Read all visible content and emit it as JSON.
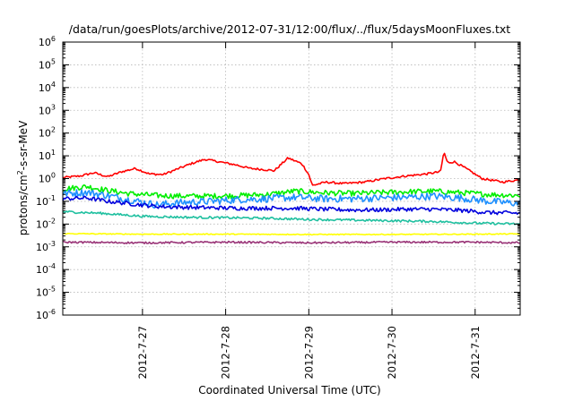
{
  "chart_data": {
    "type": "line",
    "title": "/data/run/goesPlots/archive/2012-07-31/12:00/flux/../flux/5daysMoonFluxes.txt",
    "xlabel": "Coordinated Universal Time (UTC)",
    "ylabel": {
      "base": "protons/cm",
      "sup": "2",
      "rest": "-s-sr-MeV"
    },
    "y_scale": "log",
    "ylim": [
      1e-06,
      1000000.0
    ],
    "xlim": [
      "2012-07-26T01:00",
      "2012-07-31T13:00"
    ],
    "grid": true,
    "legend": "none",
    "y_ticks": [
      {
        "value": 1e-06,
        "base": "10",
        "exp": "-6"
      },
      {
        "value": 1e-05,
        "base": "10",
        "exp": "-5"
      },
      {
        "value": 0.0001,
        "base": "10",
        "exp": "-4"
      },
      {
        "value": 0.001,
        "base": "10",
        "exp": "-3"
      },
      {
        "value": 0.01,
        "base": "10",
        "exp": "-2"
      },
      {
        "value": 0.1,
        "base": "10",
        "exp": "-1"
      },
      {
        "value": 1,
        "base": "10",
        "exp": "0"
      },
      {
        "value": 10.0,
        "base": "10",
        "exp": "1"
      },
      {
        "value": 100.0,
        "base": "10",
        "exp": "2"
      },
      {
        "value": 1000.0,
        "base": "10",
        "exp": "3"
      },
      {
        "value": 10000.0,
        "base": "10",
        "exp": "4"
      },
      {
        "value": 100000.0,
        "base": "10",
        "exp": "5"
      },
      {
        "value": 1000000.0,
        "base": "10",
        "exp": "6"
      }
    ],
    "x_ticks": [
      {
        "value": "2012-07-27T00:00",
        "label": "2012-7-27"
      },
      {
        "value": "2012-07-28T00:00",
        "label": "2012-7-28"
      },
      {
        "value": "2012-07-29T00:00",
        "label": "2012-7-29"
      },
      {
        "value": "2012-07-30T00:00",
        "label": "2012-7-30"
      },
      {
        "value": "2012-07-31T00:00",
        "label": "2012-7-31"
      }
    ],
    "series": [
      {
        "color": "#ff0000",
        "x": [
          "2012-07-26T01:00",
          "2012-07-26T06:00",
          "2012-07-26T10:00",
          "2012-07-26T14:00",
          "2012-07-26T18:00",
          "2012-07-26T22:00",
          "2012-07-27T02:00",
          "2012-07-27T06:00",
          "2012-07-27T10:00",
          "2012-07-27T14:00",
          "2012-07-27T18:00",
          "2012-07-27T22:00",
          "2012-07-28T03:00",
          "2012-07-28T07:00",
          "2012-07-28T11:00",
          "2012-07-28T14:00",
          "2012-07-28T18:00",
          "2012-07-28T22:00",
          "2012-07-29T00:00",
          "2012-07-29T01:00",
          "2012-07-29T05:00",
          "2012-07-29T10:00",
          "2012-07-29T16:00",
          "2012-07-29T22:00",
          "2012-07-30T04:00",
          "2012-07-30T10:00",
          "2012-07-30T14:00",
          "2012-07-30T15:00",
          "2012-07-30T16:00",
          "2012-07-30T18:00",
          "2012-07-30T21:00",
          "2012-07-31T02:00",
          "2012-07-31T08:00",
          "2012-07-31T13:00"
        ],
        "y": [
          1.1,
          1.3,
          1.8,
          1.2,
          2.0,
          2.8,
          1.6,
          1.5,
          2.6,
          4.5,
          7.0,
          5.5,
          4.0,
          2.8,
          2.5,
          2.2,
          8.0,
          4.5,
          1.5,
          0.5,
          0.7,
          0.6,
          0.7,
          1.0,
          1.3,
          1.6,
          2.0,
          15.0,
          5.0,
          5.5,
          3.0,
          1.0,
          0.7,
          0.9
        ]
      },
      {
        "color": "#00ee00",
        "x": [
          "2012-07-26T01:00",
          "2012-07-26T08:00",
          "2012-07-26T14:00",
          "2012-07-26T20:00",
          "2012-07-27T04:00",
          "2012-07-27T12:00",
          "2012-07-27T20:00",
          "2012-07-28T04:00",
          "2012-07-28T12:00",
          "2012-07-28T20:00",
          "2012-07-29T04:00",
          "2012-07-29T12:00",
          "2012-07-29T20:00",
          "2012-07-30T04:00",
          "2012-07-30T12:00",
          "2012-07-30T20:00",
          "2012-07-31T04:00",
          "2012-07-31T13:00"
        ],
        "y": [
          0.35,
          0.45,
          0.3,
          0.22,
          0.18,
          0.17,
          0.17,
          0.18,
          0.2,
          0.28,
          0.24,
          0.22,
          0.24,
          0.26,
          0.28,
          0.24,
          0.2,
          0.18
        ]
      },
      {
        "color": "#1e90ff",
        "x": [
          "2012-07-26T01:00",
          "2012-07-26T08:00",
          "2012-07-26T14:00",
          "2012-07-26T20:00",
          "2012-07-27T04:00",
          "2012-07-27T12:00",
          "2012-07-27T20:00",
          "2012-07-28T04:00",
          "2012-07-28T12:00",
          "2012-07-28T20:00",
          "2012-07-29T04:00",
          "2012-07-29T12:00",
          "2012-07-29T20:00",
          "2012-07-30T04:00",
          "2012-07-30T12:00",
          "2012-07-30T20:00",
          "2012-07-31T04:00",
          "2012-07-31T13:00"
        ],
        "y": [
          0.22,
          0.25,
          0.18,
          0.12,
          0.07,
          0.09,
          0.1,
          0.12,
          0.13,
          0.15,
          0.13,
          0.13,
          0.14,
          0.15,
          0.17,
          0.14,
          0.1,
          0.08
        ]
      },
      {
        "color": "#0000dd",
        "x": [
          "2012-07-26T01:00",
          "2012-07-26T08:00",
          "2012-07-26T14:00",
          "2012-07-26T20:00",
          "2012-07-27T04:00",
          "2012-07-27T12:00",
          "2012-07-27T20:00",
          "2012-07-28T04:00",
          "2012-07-28T12:00",
          "2012-07-28T20:00",
          "2012-07-29T04:00",
          "2012-07-29T12:00",
          "2012-07-29T20:00",
          "2012-07-30T04:00",
          "2012-07-30T12:00",
          "2012-07-30T20:00",
          "2012-07-31T04:00",
          "2012-07-31T13:00"
        ],
        "y": [
          0.13,
          0.14,
          0.1,
          0.08,
          0.06,
          0.055,
          0.052,
          0.05,
          0.05,
          0.05,
          0.045,
          0.042,
          0.042,
          0.045,
          0.045,
          0.04,
          0.032,
          0.03
        ]
      },
      {
        "color": "#20c0a0",
        "x": [
          "2012-07-26T01:00",
          "2012-07-26T12:00",
          "2012-07-27T00:00",
          "2012-07-27T12:00",
          "2012-07-28T00:00",
          "2012-07-28T12:00",
          "2012-07-29T00:00",
          "2012-07-29T12:00",
          "2012-07-30T00:00",
          "2012-07-30T12:00",
          "2012-07-31T00:00",
          "2012-07-31T13:00"
        ],
        "y": [
          0.035,
          0.03,
          0.022,
          0.02,
          0.019,
          0.018,
          0.016,
          0.015,
          0.014,
          0.013,
          0.011,
          0.01
        ]
      },
      {
        "color": "#ffff00",
        "x": [
          "2012-07-26T01:00",
          "2012-07-27T00:00",
          "2012-07-28T00:00",
          "2012-07-29T00:00",
          "2012-07-30T00:00",
          "2012-07-31T00:00",
          "2012-07-31T13:00"
        ],
        "y": [
          0.0038,
          0.0036,
          0.0036,
          0.0035,
          0.0035,
          0.0036,
          0.0037
        ]
      },
      {
        "color": "#993377",
        "x": [
          "2012-07-26T01:00",
          "2012-07-27T00:00",
          "2012-07-28T00:00",
          "2012-07-29T00:00",
          "2012-07-30T00:00",
          "2012-07-31T00:00",
          "2012-07-31T13:00"
        ],
        "y": [
          0.0016,
          0.0015,
          0.0016,
          0.0015,
          0.0016,
          0.0016,
          0.0015
        ]
      }
    ]
  }
}
